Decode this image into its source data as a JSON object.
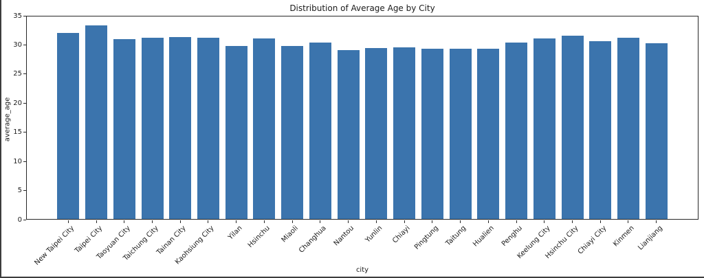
{
  "figure": {
    "background": "#ffffff",
    "spine_color": "#262626",
    "text_color": "#1a1a1a",
    "screenshot_edge_color": "#3d3d3d"
  },
  "chart_data": {
    "type": "bar",
    "title": "Distribution of Average Age by City",
    "xlabel": "city",
    "ylabel": "average_age",
    "ylim": [
      0,
      35
    ],
    "yticks": [
      0,
      5,
      10,
      15,
      20,
      25,
      30,
      35
    ],
    "grid": false,
    "legend": false,
    "bar_color": "#3b74ad",
    "categories": [
      "New Taipei City",
      "Taipei City",
      "Taoyuan City",
      "Taichung City",
      "Tainan City",
      "Kaohsiung City",
      "Yilan",
      "Hsinchu",
      "Miaoli",
      "Changhua",
      "Nantou",
      "Yunlin",
      "Chiayi",
      "Pingtung",
      "Taitung",
      "Hualien",
      "Penghu",
      "Keelung City",
      "Hsinchu City",
      "Chiayi City",
      "Kinmen",
      "Lianjiang"
    ],
    "values": [
      32.0,
      33.4,
      31.0,
      31.2,
      31.4,
      31.2,
      29.8,
      31.1,
      29.8,
      30.4,
      29.1,
      29.5,
      29.6,
      29.3,
      29.4,
      29.4,
      30.4,
      31.1,
      31.6,
      30.7,
      31.2,
      30.3
    ]
  }
}
